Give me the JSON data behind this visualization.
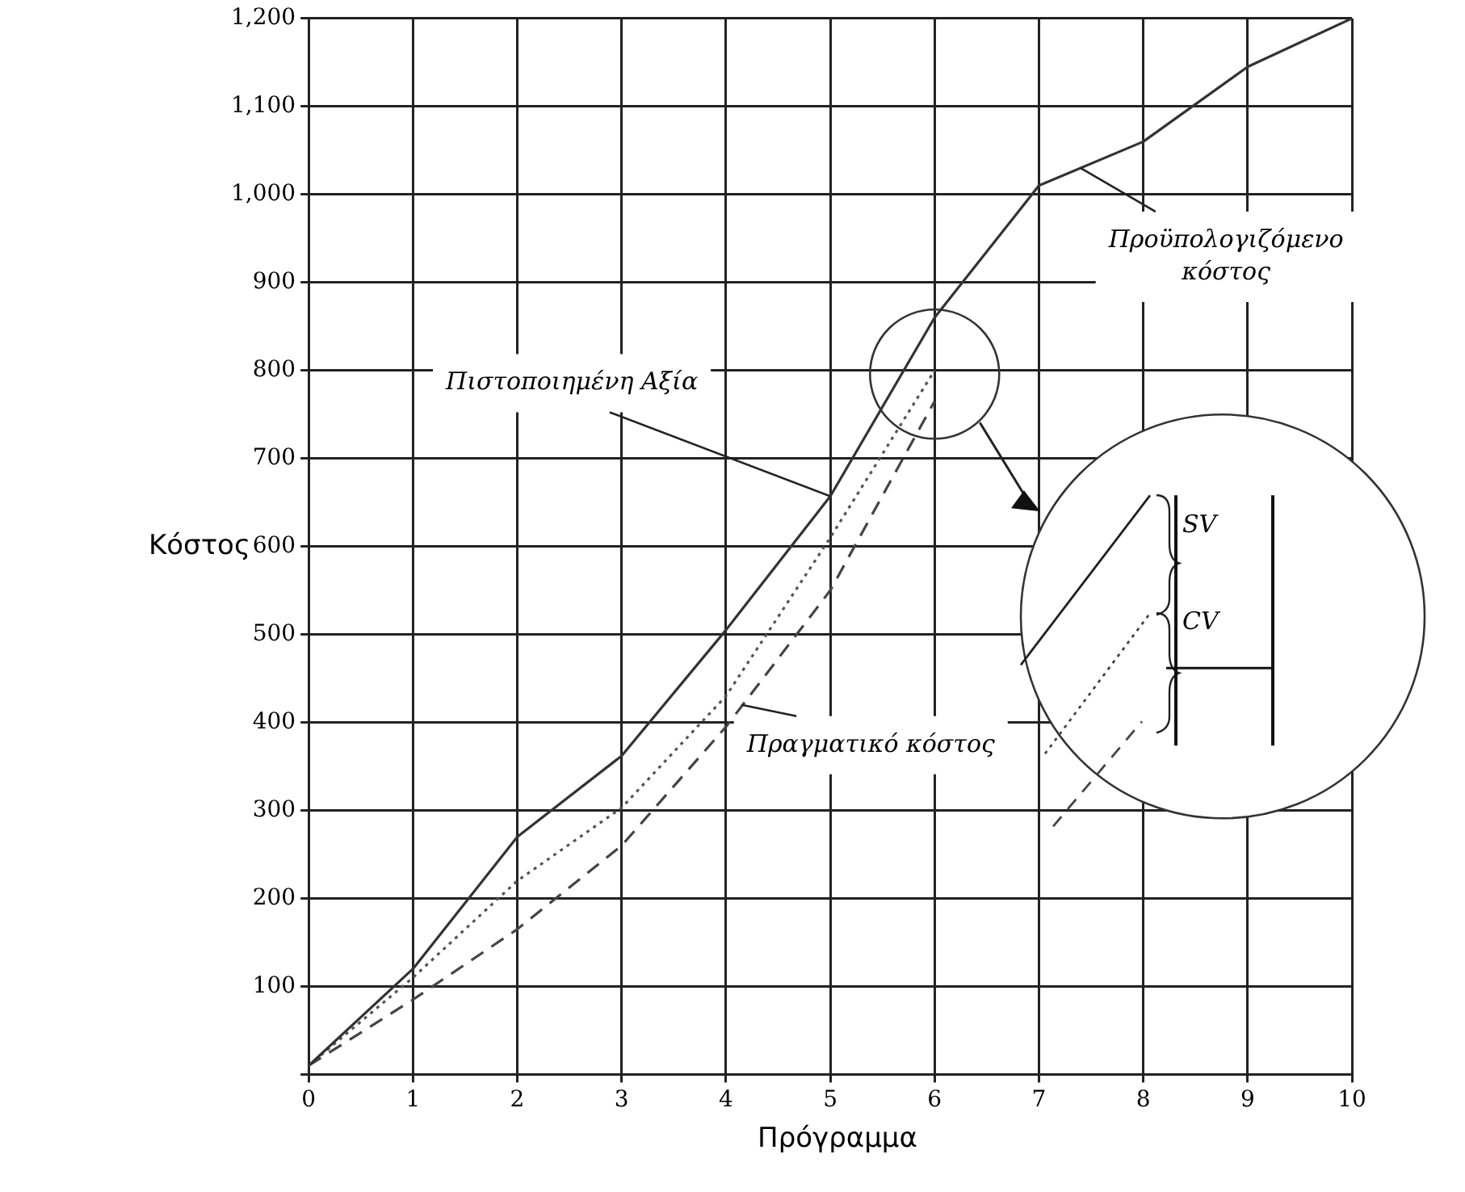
{
  "chart_data": {
    "type": "line",
    "xlabel": "Πρόγραμμα",
    "ylabel": "Κόστος",
    "x": [
      0,
      1,
      2,
      3,
      4,
      5,
      6,
      7,
      8,
      9,
      10
    ],
    "series": [
      {
        "color": "#333333",
        "line_style": "solid",
        "values": [
          10,
          120,
          270,
          362,
          505,
          657,
          860,
          1010,
          1060,
          1145,
          1200
        ]
      },
      {
        "color": "#555555",
        "line_style": "dotted",
        "values": [
          10,
          110,
          220,
          303,
          430,
          610,
          800,
          null,
          null,
          null,
          null
        ]
      },
      {
        "color": "#444444",
        "line_style": "dashed",
        "values": [
          10,
          85,
          165,
          260,
          395,
          550,
          765,
          null,
          null,
          null,
          null
        ]
      }
    ],
    "xlim": [
      0,
      10
    ],
    "xticks": [
      0,
      1,
      2,
      3,
      4,
      5,
      6,
      7,
      8,
      9,
      10
    ],
    "ylim": [
      0,
      1200
    ],
    "yticks": [
      {
        "value": 0,
        "label": null
      },
      100,
      200,
      300,
      400,
      500,
      600,
      700,
      800,
      900,
      {
        "value": 1000,
        "label": "1,000"
      },
      {
        "value": 1100,
        "label": "1,100"
      },
      {
        "value": 1200,
        "label": "1,200"
      }
    ],
    "grid": true,
    "legend": false,
    "marker": "none",
    "annotations": [
      {
        "text": "Πιστοποιημένη Αξία",
        "x": 5,
        "y": 657
      },
      {
        "text": "Προϋπολογιζόμενο κόστος",
        "x": 7.4,
        "y": 1030
      },
      {
        "text": "Πραγματικό κόστος",
        "x": 4.15,
        "y": 420
      },
      "SV",
      "CV"
    ]
  }
}
